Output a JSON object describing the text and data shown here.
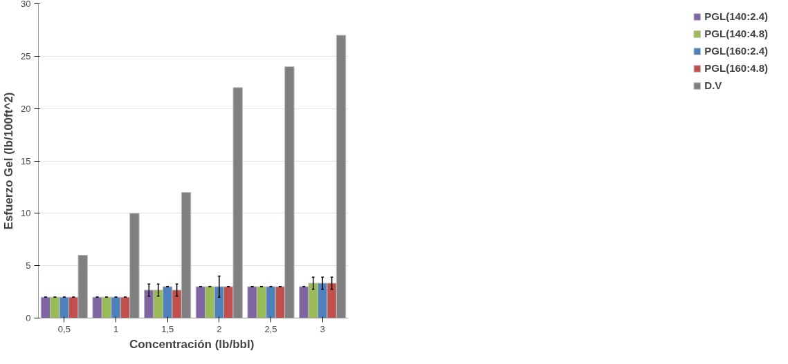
{
  "chart_data": {
    "type": "bar",
    "xlabel": "Concentración  (lb/bbl)",
    "ylabel": "Esfuerzo Gel (lb/100ft^2)",
    "categories": [
      "0,5",
      "1",
      "1,5",
      "2",
      "2,5",
      "3"
    ],
    "series": [
      {
        "name": "PGL(140:2.4)",
        "color": "#8064a2",
        "values": [
          2,
          2,
          2.67,
          3,
          3,
          3
        ],
        "errors": [
          0,
          0,
          0.58,
          0,
          0,
          0
        ]
      },
      {
        "name": "PGL(140:4.8)",
        "color": "#9bbb59",
        "values": [
          2,
          2,
          2.67,
          3,
          3,
          3.33
        ],
        "errors": [
          0,
          0,
          0.58,
          0,
          0,
          0.58
        ]
      },
      {
        "name": "PGL(160:2.4)",
        "color": "#4f81bd",
        "values": [
          2,
          2,
          3,
          3,
          3,
          3.33
        ],
        "errors": [
          0,
          0,
          0,
          1,
          0,
          0.58
        ]
      },
      {
        "name": "PGL(160:4.8)",
        "color": "#c0504d",
        "values": [
          2,
          2,
          2.67,
          3,
          3,
          3.33
        ],
        "errors": [
          0,
          0,
          0.58,
          0,
          0,
          0.58
        ]
      },
      {
        "name": "D.V",
        "color": "#808080",
        "values": [
          6,
          10,
          12,
          22,
          24,
          27
        ]
      }
    ],
    "ylim": [
      0,
      30
    ],
    "yticks": [
      0,
      5,
      10,
      15,
      20,
      25,
      30
    ],
    "grid": "y",
    "legend": "right"
  }
}
